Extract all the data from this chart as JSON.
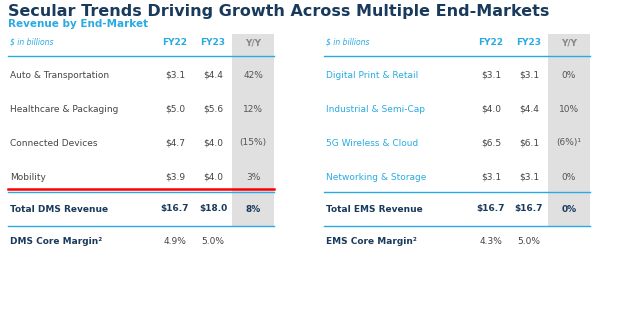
{
  "title": "Secular Trends Driving Growth Across Multiple End-Markets",
  "subtitle": "Revenue by End-Market",
  "title_color": "#1a3a5c",
  "subtitle_color": "#29ABE2",
  "bg_color": "#ffffff",
  "header_color": "#29ABE2",
  "yy_col_bg": "#E0E0E0",
  "left_label_color": "#444444",
  "right_label_color": "#29ABE2",
  "value_color": "#444444",
  "total_label_color": "#1a3a5c",
  "total_value_color": "#1a3a5c",
  "left_table": {
    "header": [
      "$ in billions",
      "FY22",
      "FY23",
      "Y/Y"
    ],
    "rows": [
      [
        "Auto & Transportation",
        "$3.1",
        "$4.4",
        "42%"
      ],
      [
        "Healthcare & Packaging",
        "$5.0",
        "$5.6",
        "12%"
      ],
      [
        "Connected Devices",
        "$4.7",
        "$4.0",
        "(15%)"
      ],
      [
        "Mobility",
        "$3.9",
        "$4.0",
        "3%"
      ]
    ],
    "total_row": [
      "Total DMS Revenue",
      "$16.7",
      "$18.0",
      "8%"
    ],
    "margin_row": [
      "DMS Core Margin²",
      "4.9%",
      "5.0%",
      ""
    ],
    "has_red_line": true
  },
  "right_table": {
    "header": [
      "$ in billions",
      "FY22",
      "FY23",
      "Y/Y"
    ],
    "rows": [
      [
        "Digital Print & Retail",
        "$3.1",
        "$3.1",
        "0%"
      ],
      [
        "Industrial & Semi-Cap",
        "$4.0",
        "$4.4",
        "10%"
      ],
      [
        "5G Wireless & Cloud",
        "$6.5",
        "$6.1",
        "(6%)¹"
      ],
      [
        "Networking & Storage",
        "$3.1",
        "$3.1",
        "0%"
      ]
    ],
    "total_row": [
      "Total EMS Revenue",
      "$16.7",
      "$16.7",
      "0%"
    ],
    "margin_row": [
      "EMS Core Margin²",
      "4.3%",
      "5.0%",
      ""
    ],
    "has_red_line": false
  }
}
